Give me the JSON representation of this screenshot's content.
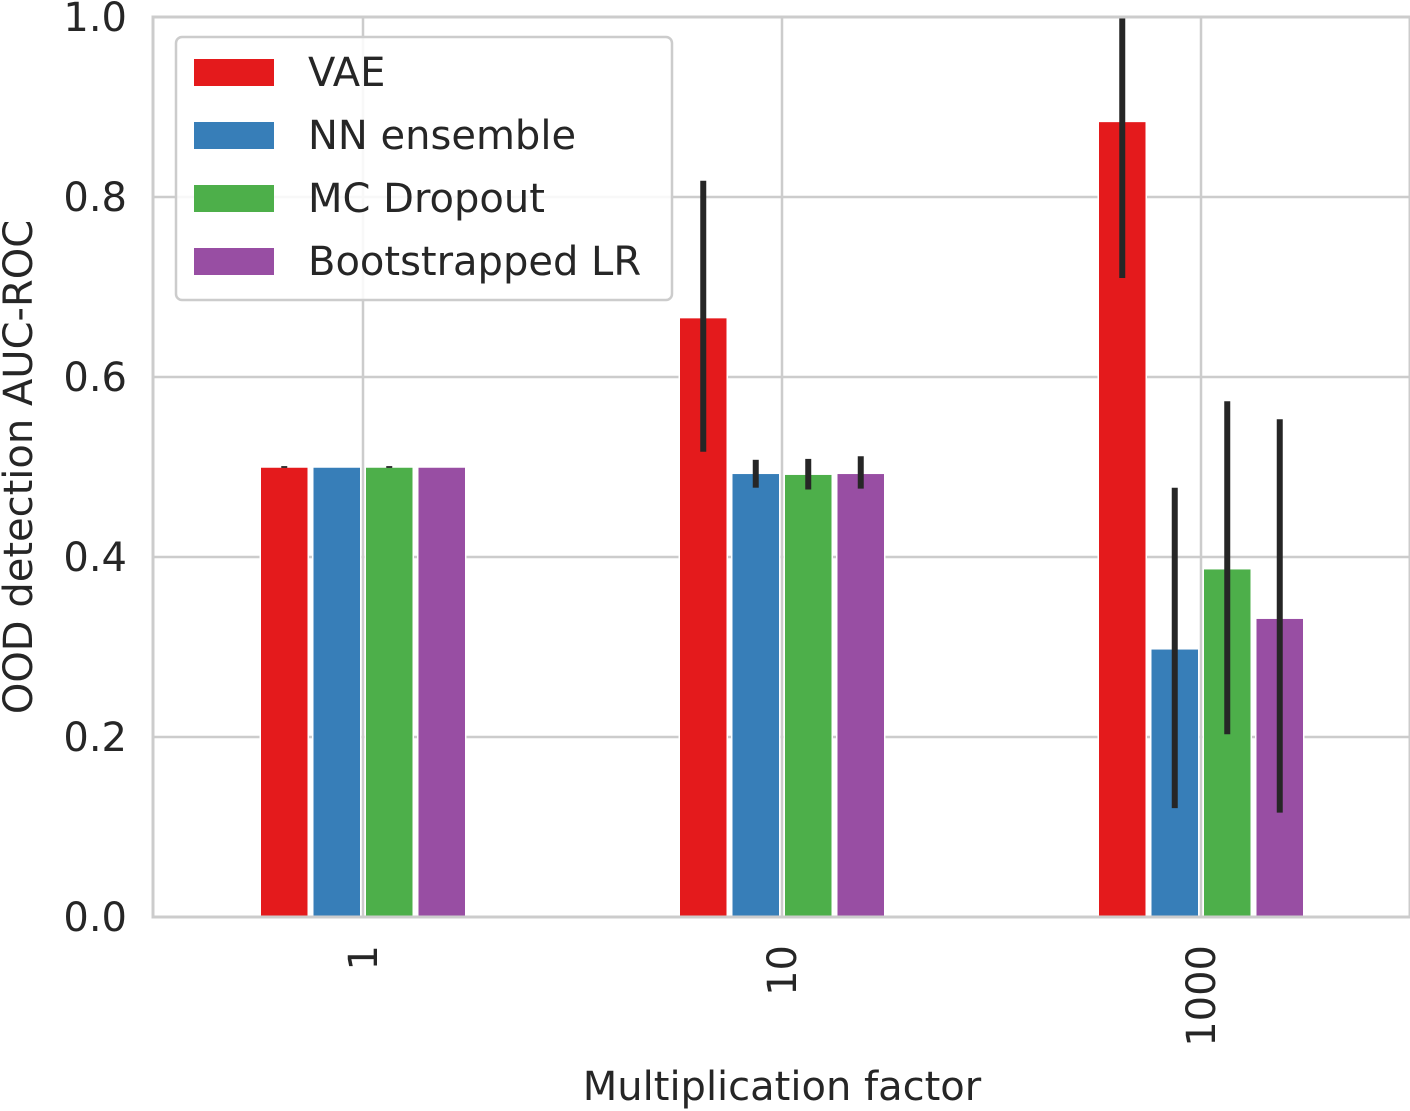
{
  "chart_data": {
    "type": "bar",
    "title": "",
    "xlabel": "Multiplication factor",
    "ylabel": "OOD detection AUC-ROC",
    "categories": [
      "1",
      "10",
      "1000"
    ],
    "ylim": [
      0.0,
      1.0
    ],
    "yticks": [
      "0.0",
      "0.2",
      "0.4",
      "0.6",
      "0.8",
      "1.0"
    ],
    "grid": true,
    "legend_position": "top-left",
    "series": [
      {
        "name": "VAE",
        "color": "#e41a1c",
        "values": [
          0.5,
          0.666,
          0.884
        ],
        "err_low": [
          0.499,
          0.517,
          0.71
        ],
        "err_high": [
          0.501,
          0.818,
          1.05
        ]
      },
      {
        "name": "NN ensemble",
        "color": "#377eb8",
        "values": [
          0.5,
          0.493,
          0.298
        ],
        "err_low": [
          0.5,
          0.477,
          0.121
        ],
        "err_high": [
          0.5,
          0.508,
          0.477
        ]
      },
      {
        "name": "MC Dropout",
        "color": "#4daf4a",
        "values": [
          0.5,
          0.492,
          0.387
        ],
        "err_low": [
          0.499,
          0.475,
          0.203
        ],
        "err_high": [
          0.501,
          0.509,
          0.573
        ]
      },
      {
        "name": "Bootstrapped LR",
        "color": "#984ea3",
        "values": [
          0.5,
          0.493,
          0.332
        ],
        "err_low": [
          0.5,
          0.476,
          0.116
        ],
        "err_high": [
          0.5,
          0.512,
          0.553
        ]
      }
    ]
  }
}
